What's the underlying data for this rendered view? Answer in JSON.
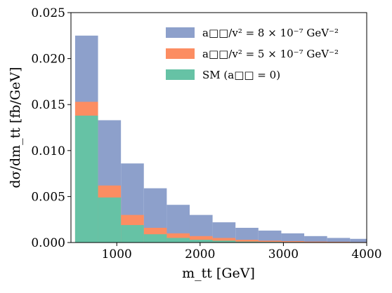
{
  "colors": {
    "bsm8": "#8da0cb",
    "bsm5": "#fc8d62",
    "sm": "#66c2a5"
  },
  "chart_data": {
    "type": "bar",
    "xlabel": "m_tt [GeV]",
    "ylabel": "dσ/dm_tt [fb/GeV]",
    "xlim": [
      450,
      4000
    ],
    "ylim": [
      0,
      0.025
    ],
    "xticks": [
      "1000",
      "2000",
      "3000",
      "4000"
    ],
    "yticks": [
      "0.000",
      "0.005",
      "0.010",
      "0.015",
      "0.020",
      "0.025"
    ],
    "bin_edges": [
      500,
      775,
      1050,
      1325,
      1600,
      1875,
      2150,
      2425,
      2700,
      2975,
      3250,
      3525,
      3800,
      4075
    ],
    "legend_position": "top-right",
    "series": [
      {
        "name": "a□□/v² = 8 × 10⁻⁷ GeV⁻²",
        "color_key": "bsm8",
        "values": [
          0.0225,
          0.0133,
          0.0086,
          0.0059,
          0.0041,
          0.003,
          0.0022,
          0.0016,
          0.0013,
          0.001,
          0.0007,
          0.0005,
          0.0004
        ]
      },
      {
        "name": "a□□/v² = 5 × 10⁻⁷ GeV⁻²",
        "color_key": "bsm5",
        "values": [
          0.0153,
          0.0062,
          0.003,
          0.0016,
          0.001,
          0.0007,
          0.0005,
          0.0003,
          0.0002,
          0.00015,
          0.0001,
          8e-05,
          5e-05
        ]
      },
      {
        "name": "SM (a□□ = 0)",
        "color_key": "sm",
        "values": [
          0.0138,
          0.0049,
          0.0019,
          0.0009,
          0.0005,
          0.0003,
          0.0002,
          0.0001,
          7e-05,
          5e-05,
          3e-05,
          2e-05,
          1e-05
        ]
      }
    ]
  }
}
